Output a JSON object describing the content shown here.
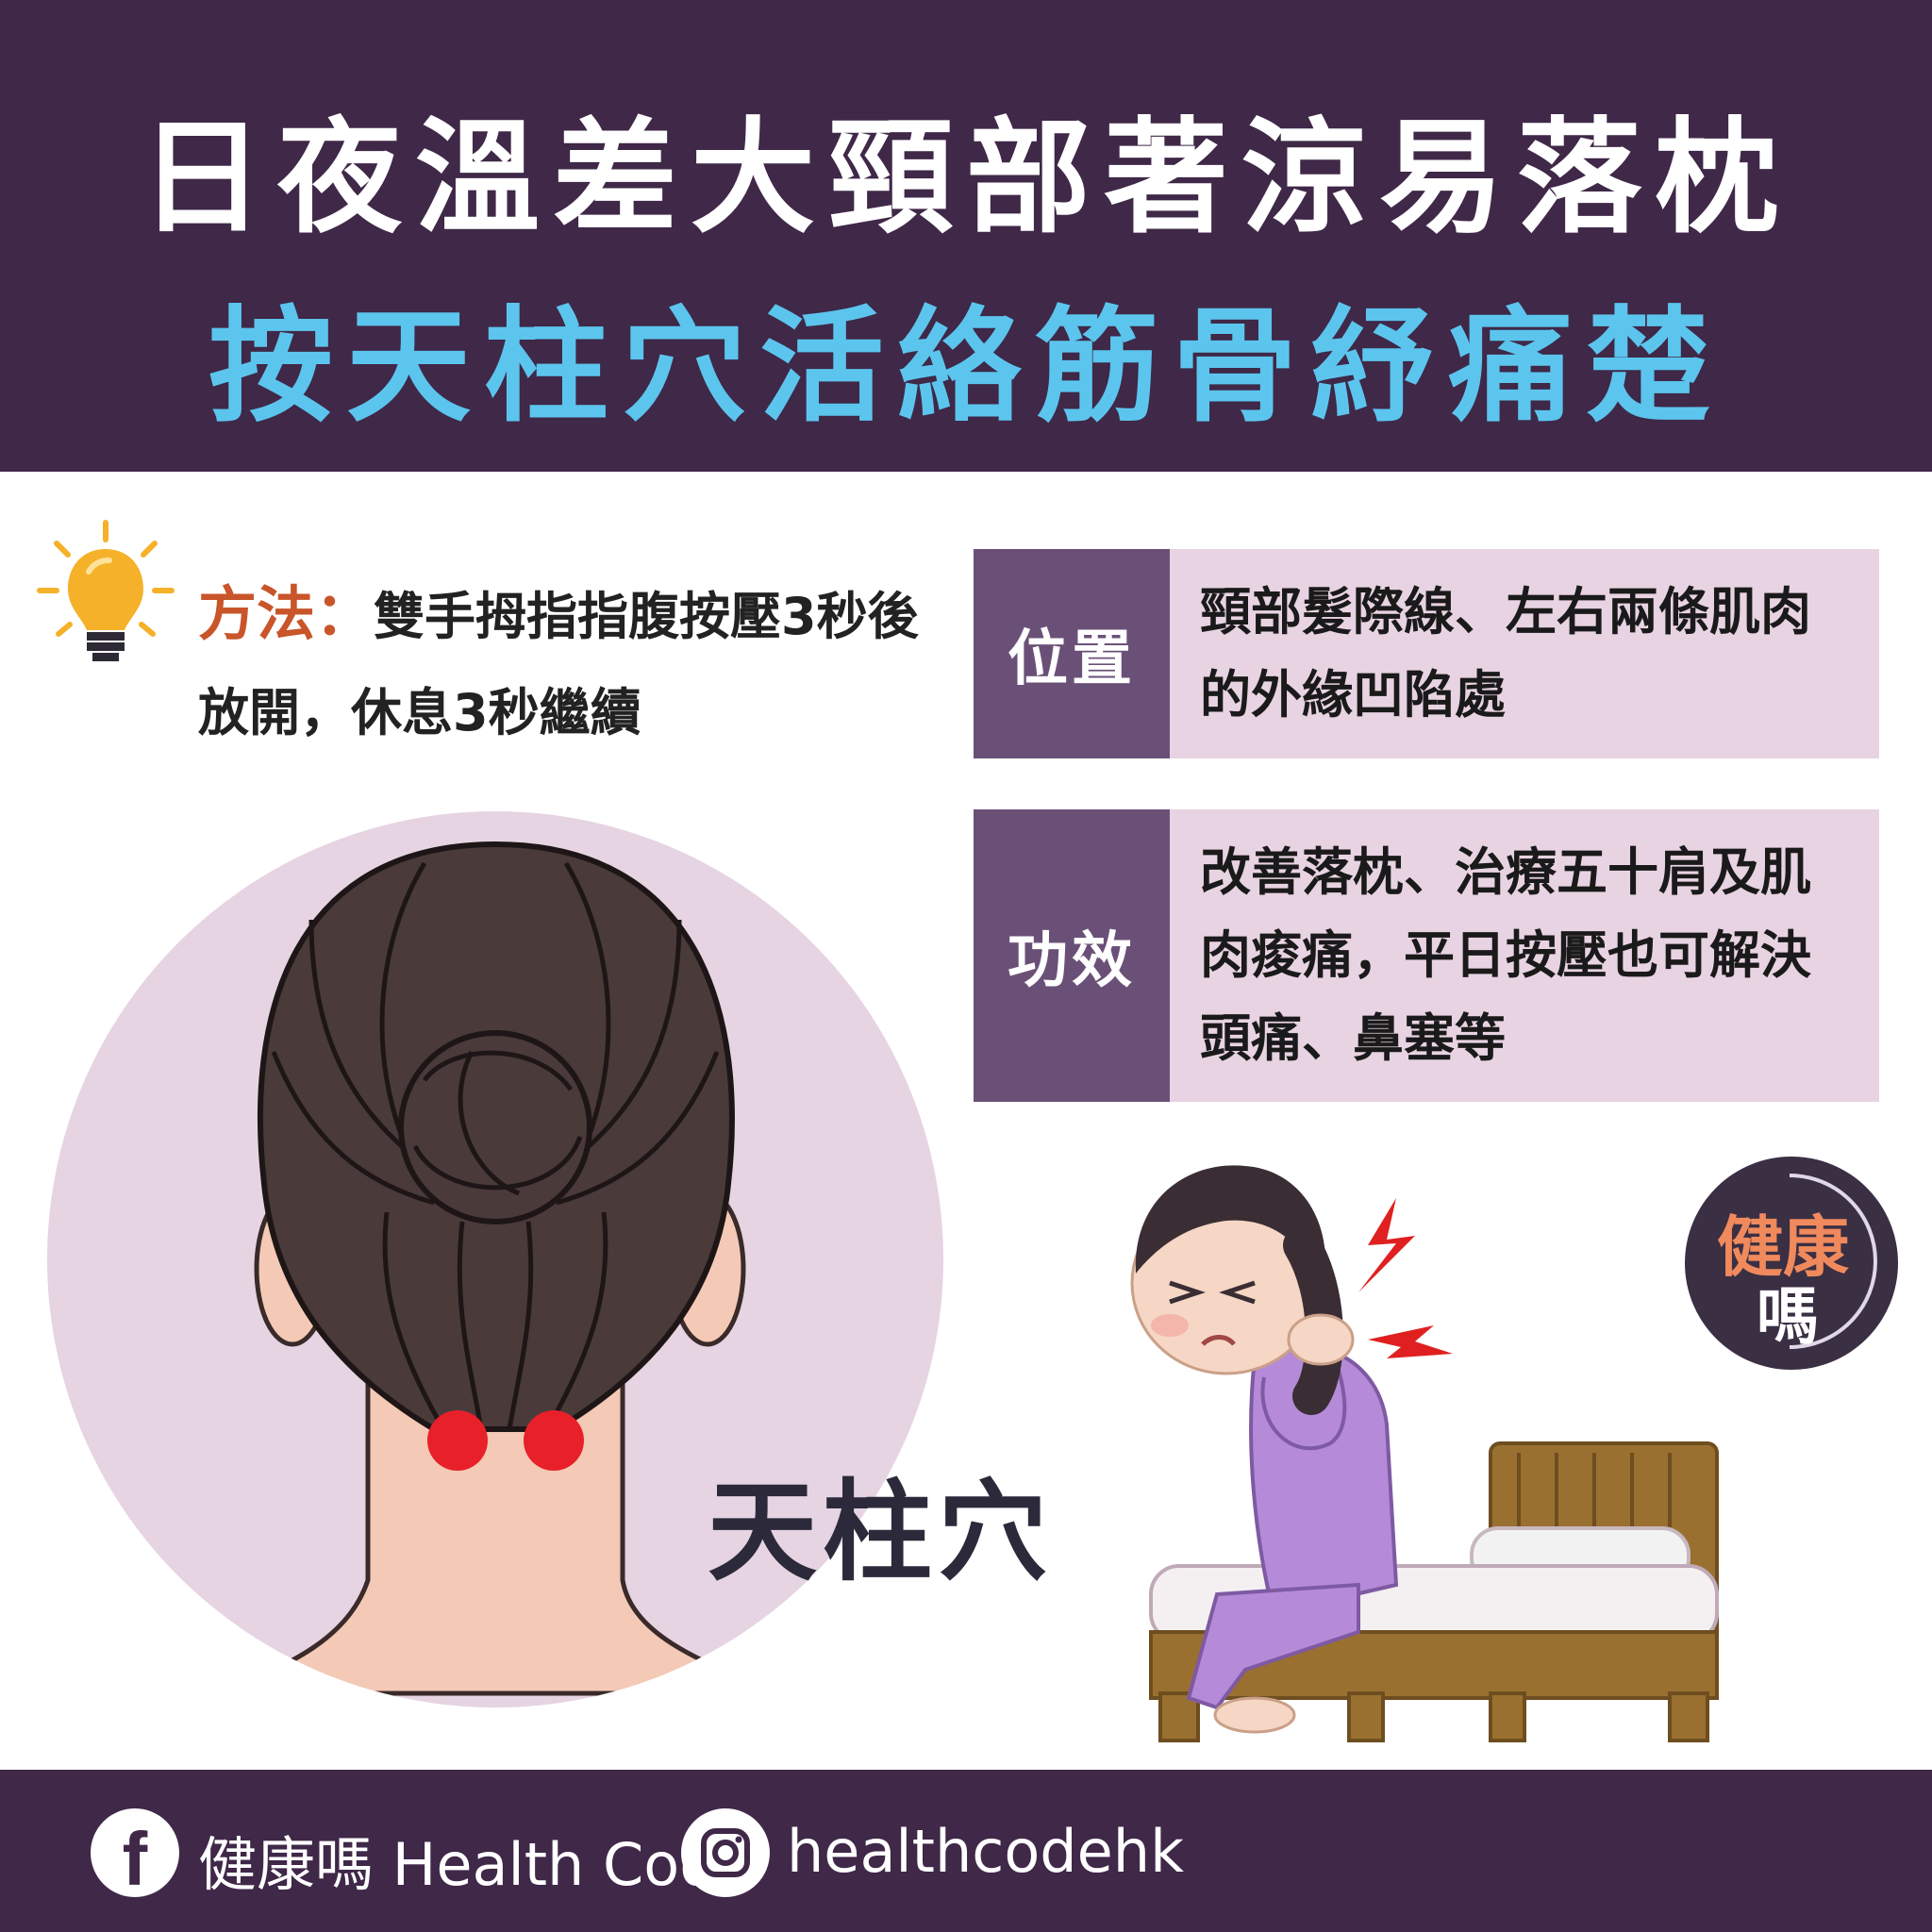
{
  "header": {
    "title_line1": "日夜溫差大頸部著涼易落枕",
    "title_line2": "按天柱穴活絡筋骨紓痛楚"
  },
  "method": {
    "label": "方法：",
    "text": "雙手拇指指腹按壓3秒後放開，休息3秒繼續"
  },
  "location": {
    "tag": "位置",
    "text": "頸部髮際線、左右兩條肌肉的外緣凹陷處"
  },
  "effect": {
    "tag": "功效",
    "text": "改善落枕、治療五十肩及肌肉痠痛，平日按壓也可解決頭痛、鼻塞等"
  },
  "acupoint": {
    "label": "天柱穴"
  },
  "badge": {
    "line1": "健康",
    "line2": "嗎"
  },
  "footer": {
    "facebook_name": "健康嗎 Health Code",
    "instagram_handle": "healthcodehk"
  },
  "colors": {
    "header_bg": "#3f2848",
    "title_white": "#ffffff",
    "title_blue": "#5cc5ee",
    "method_label": "#c9552a",
    "tag_bg": "#6a5077",
    "box_bg": "#e8d3e2",
    "acupoint_dot": "#e8202a"
  },
  "icons": [
    "lightbulb-icon",
    "facebook-icon",
    "instagram-icon"
  ]
}
